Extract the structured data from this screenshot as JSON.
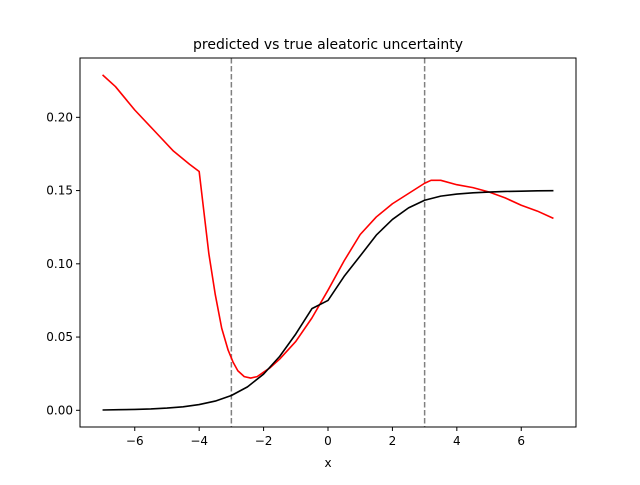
{
  "chart_data": {
    "type": "line",
    "title": "predicted vs true aleatoric uncertainty",
    "xlabel": "x",
    "ylabel": "",
    "xlim": [
      -7.7,
      7.7
    ],
    "ylim": [
      -0.0114,
      0.2405
    ],
    "xticks": [
      -6,
      -4,
      -2,
      0,
      2,
      4,
      6
    ],
    "xtick_labels": [
      "−6",
      "−4",
      "−2",
      "0",
      "2",
      "4",
      "6"
    ],
    "yticks": [
      0.0,
      0.05,
      0.1,
      0.15,
      0.2
    ],
    "ytick_labels": [
      "0.00",
      "0.05",
      "0.10",
      "0.15",
      "0.20"
    ],
    "grid": false,
    "vlines": [
      {
        "x": -3,
        "color": "#808080",
        "style": "dashed"
      },
      {
        "x": 3,
        "color": "#808080",
        "style": "dashed"
      }
    ],
    "series": [
      {
        "color": "#ff0000",
        "x": [
          -7.0,
          -6.6,
          -6.0,
          -5.4,
          -4.8,
          -4.3,
          -4.0,
          -3.85,
          -3.7,
          -3.5,
          -3.3,
          -3.1,
          -2.95,
          -2.8,
          -2.6,
          -2.4,
          -2.2,
          -2.0,
          -1.8,
          -1.5,
          -1.0,
          -0.5,
          0.0,
          0.5,
          1.0,
          1.5,
          2.0,
          2.5,
          3.0,
          3.2,
          3.5,
          4.0,
          4.5,
          5.0,
          5.5,
          6.0,
          6.5,
          7.0
        ],
        "y": [
          0.229,
          0.221,
          0.205,
          0.191,
          0.177,
          0.168,
          0.163,
          0.135,
          0.107,
          0.079,
          0.056,
          0.041,
          0.033,
          0.027,
          0.023,
          0.022,
          0.023,
          0.026,
          0.029,
          0.035,
          0.047,
          0.063,
          0.082,
          0.102,
          0.12,
          0.132,
          0.141,
          0.148,
          0.155,
          0.157,
          0.157,
          0.154,
          0.152,
          0.149,
          0.145,
          0.14,
          0.136,
          0.131
        ]
      },
      {
        "color": "#000000",
        "x": [
          -7.0,
          -6.5,
          -6.0,
          -5.5,
          -5.0,
          -4.5,
          -4.0,
          -3.5,
          -3.0,
          -2.5,
          -2.0,
          -1.5,
          -1.0,
          -0.5,
          0.0,
          0.5,
          1.0,
          1.5,
          2.0,
          2.5,
          3.0,
          3.5,
          4.0,
          4.5,
          5.0,
          5.5,
          6.0,
          6.5,
          7.0
        ],
        "y": [
          0.0002,
          0.0004,
          0.0006,
          0.0009,
          0.0015,
          0.0024,
          0.0039,
          0.0063,
          0.0101,
          0.016,
          0.0247,
          0.0368,
          0.0521,
          0.0694,
          0.075,
          0.0914,
          0.1054,
          0.1196,
          0.1303,
          0.1382,
          0.1434,
          0.1462,
          0.1476,
          0.1485,
          0.149,
          0.1494,
          0.1496,
          0.1498,
          0.1499
        ]
      }
    ]
  }
}
